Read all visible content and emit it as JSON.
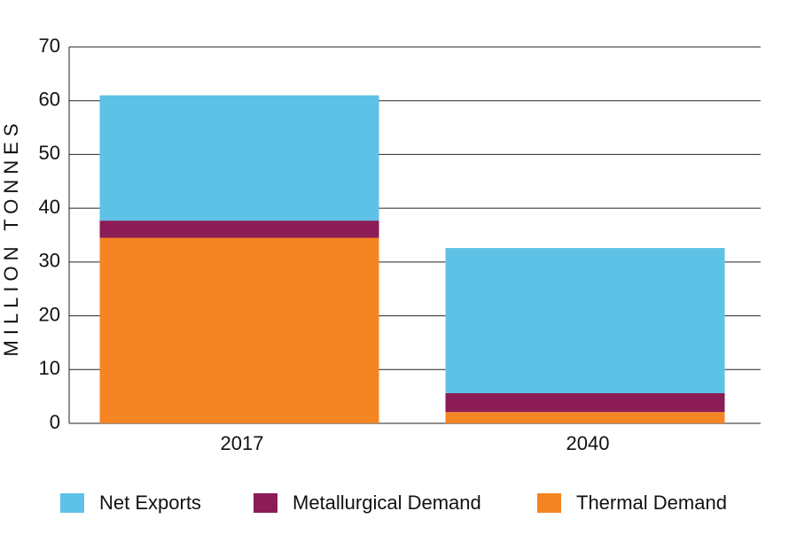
{
  "chart_data": {
    "type": "stacked_bar",
    "y_label": "MILLION TONNES",
    "categories": [
      "2017",
      "2040"
    ],
    "series": [
      {
        "name": "Net Exports",
        "color": "#5ec1e6",
        "values": [
          23.3,
          27.0
        ]
      },
      {
        "name": "Metallurgical Demand",
        "color": "#8b1c55",
        "values": [
          3.2,
          3.5
        ]
      },
      {
        "name": "Thermal Demand",
        "color": "#f58423",
        "values": [
          34.5,
          2.1
        ]
      }
    ],
    "ylim": [
      0,
      70
    ],
    "yticks": [
      0,
      10,
      20,
      30,
      40,
      50,
      60,
      70
    ],
    "grid": true
  }
}
